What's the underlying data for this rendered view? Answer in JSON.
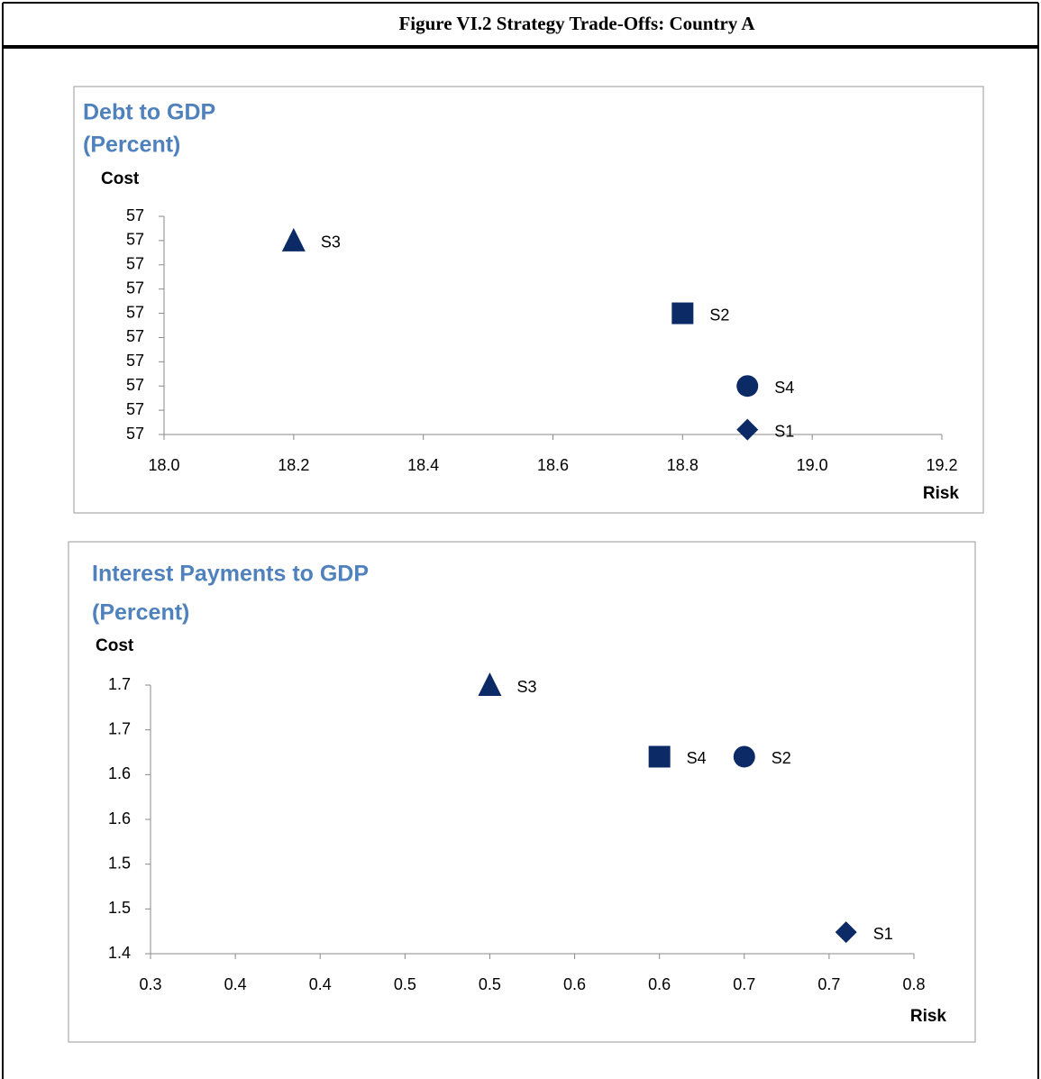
{
  "header": {
    "title": "Figure VI.2 Strategy Trade-Offs: Country A"
  },
  "chart_data": [
    {
      "type": "scatter",
      "title": [
        "Debt to GDP",
        "(Percent)"
      ],
      "x_label": "Risk",
      "y_label": "Cost",
      "xlim": [
        18.0,
        19.2
      ],
      "xticks": [
        {
          "value": 18.0,
          "label": "18.0"
        },
        18.2,
        18.4,
        18.6,
        18.8,
        {
          "value": 19.0,
          "label": "19.0"
        },
        19.2
      ],
      "ylim": [
        56.9,
        57.35
      ],
      "yticks": [
        {
          "value": 56.9,
          "label": "57"
        },
        {
          "value": 56.95,
          "label": "57"
        },
        {
          "value": 57.0,
          "label": "57"
        },
        {
          "value": 57.05,
          "label": "57"
        },
        {
          "value": 57.1,
          "label": "57"
        },
        {
          "value": 57.15,
          "label": "57"
        },
        {
          "value": 57.2,
          "label": "57"
        },
        {
          "value": 57.25,
          "label": "57"
        },
        {
          "value": 57.3,
          "label": "57"
        },
        {
          "value": 57.35,
          "label": "57"
        }
      ],
      "series": [
        {
          "name": "S1",
          "marker": "diamond",
          "color": "#0c2a66",
          "x": [
            18.9
          ],
          "values": [
            56.91
          ]
        },
        {
          "name": "S2",
          "marker": "square",
          "color": "#0c2a66",
          "x": [
            18.8
          ],
          "values": [
            57.15
          ]
        },
        {
          "name": "S3",
          "marker": "triangle",
          "color": "#0c2a66",
          "x": [
            18.2
          ],
          "values": [
            57.3
          ]
        },
        {
          "name": "S4",
          "marker": "circle",
          "color": "#0c2a66",
          "x": [
            18.9
          ],
          "values": [
            57.0
          ]
        }
      ]
    },
    {
      "type": "scatter",
      "title": [
        "Interest Payments to GDP",
        "(Percent)"
      ],
      "x_label": "Risk",
      "y_label": "Cost",
      "xlim": [
        0.3,
        0.75
      ],
      "xticks": [
        0.3,
        {
          "value": 0.35,
          "label": "0.4"
        },
        0.4,
        {
          "value": 0.45,
          "label": "0.5"
        },
        0.5,
        {
          "value": 0.55,
          "label": "0.6"
        },
        0.6,
        {
          "value": 0.65,
          "label": "0.7"
        },
        0.7,
        {
          "value": 0.75,
          "label": "0.8"
        }
      ],
      "ylim": [
        1.4,
        1.7
      ],
      "yticks": [
        1.4,
        {
          "value": 1.45,
          "label": "1.5"
        },
        1.5,
        {
          "value": 1.55,
          "label": "1.6"
        },
        1.6,
        {
          "value": 1.65,
          "label": "1.7"
        },
        1.7
      ],
      "series": [
        {
          "name": "S1",
          "marker": "diamond",
          "color": "#0c2a66",
          "x": [
            0.71
          ],
          "values": [
            1.424
          ]
        },
        {
          "name": "S2",
          "marker": "circle",
          "color": "#0c2a66",
          "x": [
            0.65
          ],
          "values": [
            1.62
          ]
        },
        {
          "name": "S3",
          "marker": "triangle",
          "color": "#0c2a66",
          "x": [
            0.5
          ],
          "values": [
            1.7
          ]
        },
        {
          "name": "S4",
          "marker": "square",
          "color": "#0c2a66",
          "x": [
            0.6
          ],
          "values": [
            1.62
          ]
        }
      ]
    }
  ]
}
